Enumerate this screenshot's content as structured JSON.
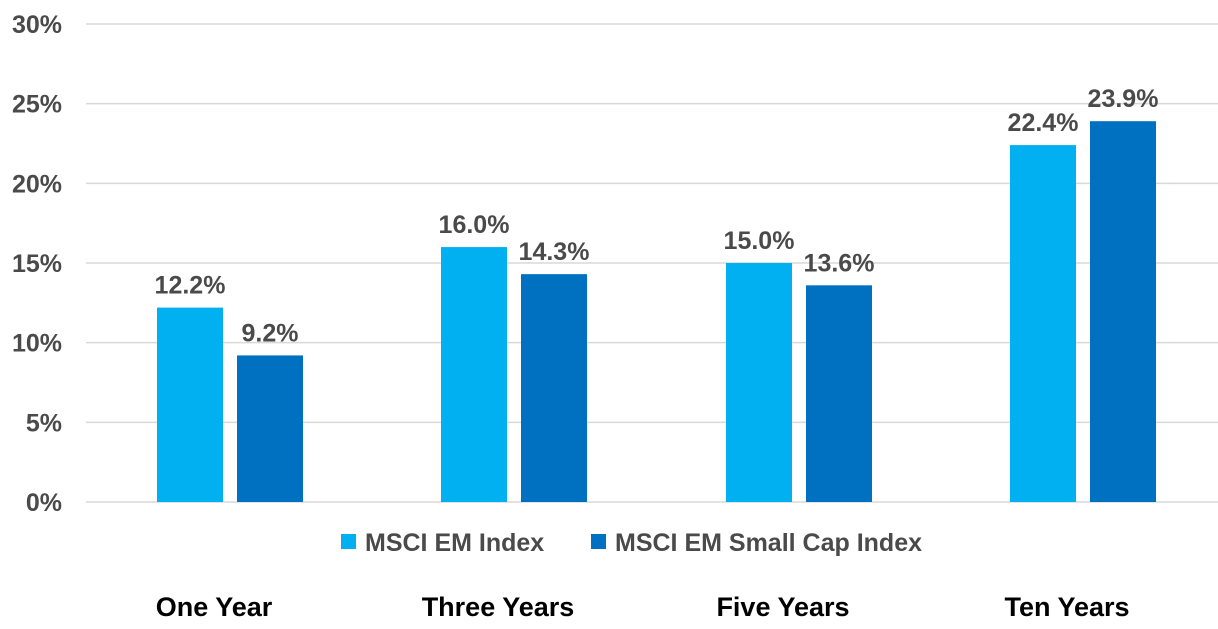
{
  "chart_data": {
    "type": "bar",
    "categories": [
      "One Year",
      "Three Years",
      "Five Years",
      "Ten Years"
    ],
    "series": [
      {
        "name": "MSCI EM Index",
        "values": [
          12.2,
          16.0,
          15.0,
          22.4
        ],
        "labels": [
          "12.2%",
          "16.0%",
          "15.0%",
          "22.4%"
        ],
        "color": "#00b0f0"
      },
      {
        "name": "MSCI EM Small Cap Index",
        "values": [
          9.2,
          14.3,
          13.6,
          23.9
        ],
        "labels": [
          "9.2%",
          "14.3%",
          "13.6%",
          "23.9%"
        ],
        "color": "#0070c0"
      }
    ],
    "title": "",
    "xlabel": "",
    "ylabel": "",
    "ylim": [
      0,
      30
    ],
    "yticks": [
      0,
      5,
      10,
      15,
      20,
      25,
      30
    ],
    "ytick_labels": [
      "0%",
      "5%",
      "10%",
      "15%",
      "20%",
      "25%",
      "30%"
    ],
    "grid": true,
    "legend_position": "bottom"
  }
}
